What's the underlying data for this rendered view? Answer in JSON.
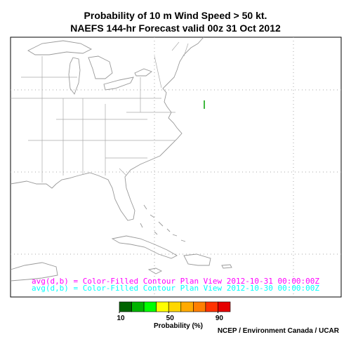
{
  "header": {
    "title_line1": "Probability of 10 m Wind Speed > 50 kt.",
    "title_line2": "NAEFS 144-hr Forecast valid 00z 31 Oct 2012"
  },
  "map": {
    "legend_lines": [
      {
        "text": "avg(d,b) = Color-Filled Contour Plan View 2012-10-31 00:00:00Z",
        "color": "#ff00ff"
      },
      {
        "text": "avg(d,b) = Color-Filled Contour Plan View 2012-10-30 00:00:00Z",
        "color": "#00ffff"
      }
    ]
  },
  "colorbar": {
    "range": [
      10,
      100
    ],
    "ticks": [
      10,
      50,
      90
    ],
    "label": "Probability (%)",
    "colors": [
      "#006400",
      "#00b400",
      "#00ff00",
      "#ffff00",
      "#ffd700",
      "#ffaa00",
      "#ff7f00",
      "#ff3300",
      "#e60000"
    ]
  },
  "footer": {
    "credit": "NCEP / Environment Canada / UCAR"
  }
}
